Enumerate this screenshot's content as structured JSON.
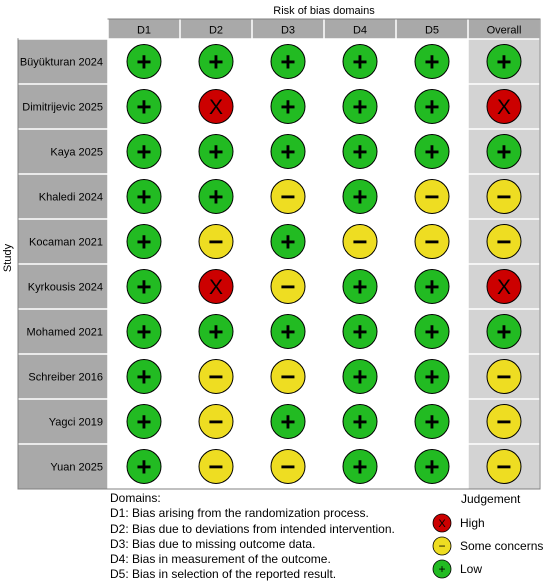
{
  "header": {
    "top_title": "Risk of bias domains",
    "side_title": "Study"
  },
  "domains": [
    "D1",
    "D2",
    "D3",
    "D4",
    "D5",
    "Overall"
  ],
  "studies": [
    {
      "name": "Büyükturan 2024",
      "judgements": [
        "low",
        "low",
        "low",
        "low",
        "low",
        "low"
      ]
    },
    {
      "name": "Dimitrijevic 2025",
      "judgements": [
        "low",
        "high",
        "low",
        "low",
        "low",
        "high"
      ]
    },
    {
      "name": "Kaya 2025",
      "judgements": [
        "low",
        "low",
        "low",
        "low",
        "low",
        "low"
      ]
    },
    {
      "name": "Khaledi 2024",
      "judgements": [
        "low",
        "low",
        "some",
        "low",
        "some",
        "some"
      ]
    },
    {
      "name": "Kocaman 2021",
      "judgements": [
        "low",
        "some",
        "low",
        "some",
        "some",
        "some"
      ]
    },
    {
      "name": "Kyrkousis 2024",
      "judgements": [
        "low",
        "high",
        "some",
        "low",
        "low",
        "high"
      ]
    },
    {
      "name": "Mohamed 2021",
      "judgements": [
        "low",
        "low",
        "low",
        "low",
        "low",
        "low"
      ]
    },
    {
      "name": "Schreiber 2016",
      "judgements": [
        "low",
        "some",
        "some",
        "low",
        "low",
        "some"
      ]
    },
    {
      "name": "Yagci 2019",
      "judgements": [
        "low",
        "some",
        "low",
        "low",
        "low",
        "some"
      ]
    },
    {
      "name": "Yuan 2025",
      "judgements": [
        "low",
        "some",
        "some",
        "low",
        "low",
        "some"
      ]
    }
  ],
  "judgement_symbols": {
    "high": {
      "symbol": "X",
      "color": "#cc0000"
    },
    "some": {
      "symbol": "−",
      "color": "#eedd22"
    },
    "low": {
      "symbol": "+",
      "color": "#22bb22"
    }
  },
  "footnote": {
    "heading": "Domains:",
    "lines": [
      "D1: Bias arising from the randomization process.",
      "D2: Bias due to deviations from intended intervention.",
      "D3: Bias due to missing outcome data.",
      "D4: Bias in measurement of the outcome.",
      "D5: Bias in selection of the reported result."
    ]
  },
  "legend": {
    "title": "Judgement",
    "items": [
      {
        "key": "high",
        "label": "High"
      },
      {
        "key": "some",
        "label": "Some concerns"
      },
      {
        "key": "low",
        "label": "Low"
      }
    ]
  },
  "colors": {
    "header_fill": "#a9a9a9",
    "overall_fill": "#d3d3d3",
    "grid_line": "#ffffff",
    "border": "#808080",
    "symbol_outline": "#000000"
  }
}
